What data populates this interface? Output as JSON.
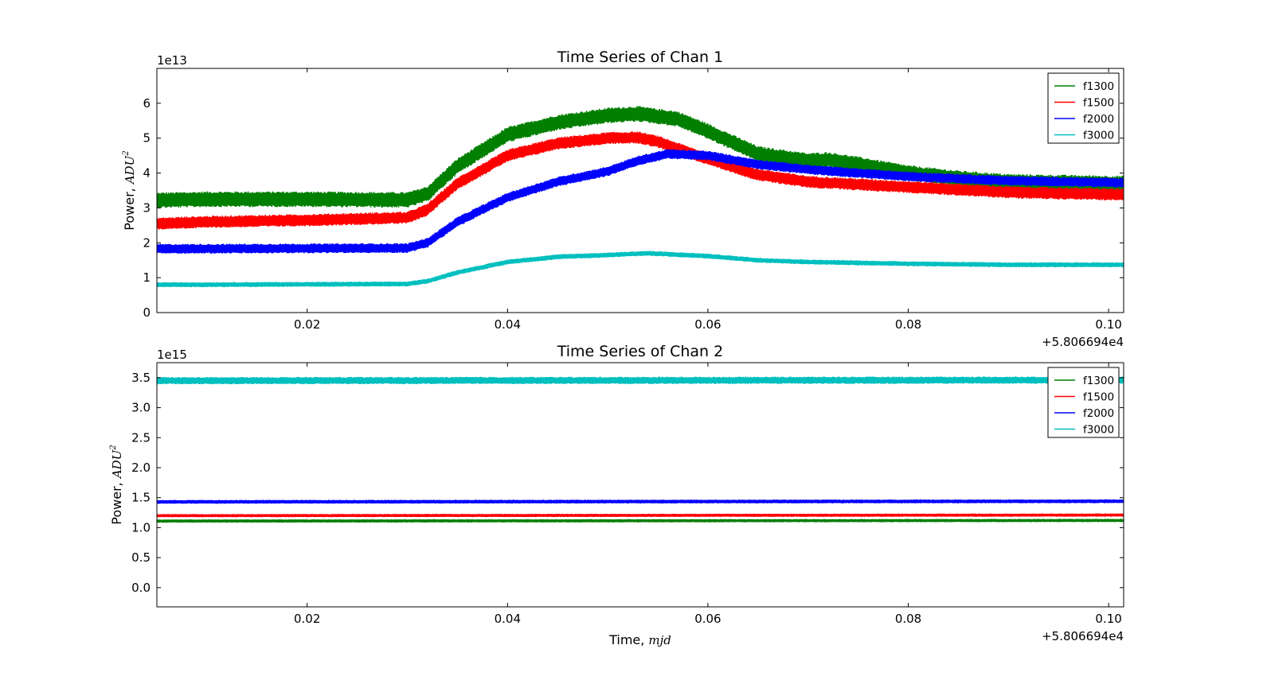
{
  "chart_data": [
    {
      "type": "line",
      "title": "Time Series of Chan 1",
      "xlabel": "",
      "ylabel": "Power,",
      "ylabel_math": "ADU",
      "ylabel_sup": "2",
      "y_multiplier": "1e13",
      "x_offset": "+5.806694e4",
      "xlim": [
        0.005,
        0.1015
      ],
      "ylim": [
        0,
        7
      ],
      "xticks": [
        0.02,
        0.04,
        0.06,
        0.08,
        0.1
      ],
      "xtick_labels": [
        "0.02",
        "0.04",
        "0.06",
        "0.08",
        "0.10"
      ],
      "yticks": [
        0,
        1,
        2,
        3,
        4,
        5,
        6
      ],
      "ytick_labels": [
        "0",
        "1",
        "2",
        "3",
        "4",
        "5",
        "6"
      ],
      "grid": false,
      "legend": "top-right",
      "series": [
        {
          "name": "f1300",
          "color": "#007f00",
          "band": 0.45,
          "x": [
            0.005,
            0.01,
            0.02,
            0.03,
            0.032,
            0.035,
            0.04,
            0.045,
            0.05,
            0.053,
            0.057,
            0.06,
            0.065,
            0.07,
            0.072,
            0.075,
            0.08,
            0.085,
            0.09,
            0.1015
          ],
          "y": [
            3.22,
            3.25,
            3.25,
            3.23,
            3.4,
            4.2,
            5.1,
            5.45,
            5.65,
            5.7,
            5.55,
            5.2,
            4.55,
            4.35,
            4.38,
            4.25,
            4.0,
            3.85,
            3.75,
            3.7
          ]
        },
        {
          "name": "f1500",
          "color": "#ff0000",
          "band": 0.35,
          "x": [
            0.005,
            0.01,
            0.02,
            0.03,
            0.032,
            0.035,
            0.04,
            0.045,
            0.05,
            0.053,
            0.055,
            0.06,
            0.065,
            0.07,
            0.08,
            0.09,
            0.1015
          ],
          "y": [
            2.55,
            2.6,
            2.65,
            2.72,
            2.95,
            3.7,
            4.5,
            4.85,
            5.0,
            5.02,
            4.9,
            4.4,
            3.95,
            3.75,
            3.6,
            3.45,
            3.38
          ]
        },
        {
          "name": "f2000",
          "color": "#0000ff",
          "band": 0.28,
          "x": [
            0.005,
            0.01,
            0.02,
            0.03,
            0.032,
            0.035,
            0.04,
            0.045,
            0.05,
            0.053,
            0.056,
            0.06,
            0.065,
            0.07,
            0.08,
            0.09,
            0.1015
          ],
          "y": [
            1.83,
            1.83,
            1.84,
            1.85,
            2.0,
            2.6,
            3.3,
            3.75,
            4.05,
            4.35,
            4.55,
            4.5,
            4.25,
            4.1,
            3.9,
            3.78,
            3.72
          ]
        },
        {
          "name": "f3000",
          "color": "#00bfbf",
          "band": 0.14,
          "x": [
            0.005,
            0.01,
            0.02,
            0.03,
            0.032,
            0.035,
            0.04,
            0.045,
            0.05,
            0.054,
            0.06,
            0.065,
            0.07,
            0.08,
            0.09,
            0.1015
          ],
          "y": [
            0.8,
            0.8,
            0.81,
            0.82,
            0.9,
            1.15,
            1.45,
            1.6,
            1.65,
            1.7,
            1.62,
            1.5,
            1.45,
            1.4,
            1.37,
            1.37
          ]
        }
      ]
    },
    {
      "type": "line",
      "title": "Time Series of Chan 2",
      "xlabel": "Time,",
      "xlabel_math": "mjd",
      "ylabel": "Power,",
      "ylabel_math": "ADU",
      "ylabel_sup": "2",
      "y_multiplier": "1e15",
      "x_offset": "+5.806694e4",
      "xlim": [
        0.005,
        0.1015
      ],
      "ylim": [
        -0.32,
        3.75
      ],
      "xticks": [
        0.02,
        0.04,
        0.06,
        0.08,
        0.1
      ],
      "xtick_labels": [
        "0.02",
        "0.04",
        "0.06",
        "0.08",
        "0.10"
      ],
      "yticks": [
        0.0,
        0.5,
        1.0,
        1.5,
        2.0,
        2.5,
        3.0,
        3.5
      ],
      "ytick_labels": [
        "0.0",
        "0.5",
        "1.0",
        "1.5",
        "2.0",
        "2.5",
        "3.0",
        "3.5"
      ],
      "grid": false,
      "legend": "top-right",
      "series": [
        {
          "name": "f1300",
          "color": "#007f00",
          "band": 0.05,
          "x": [
            0.005,
            0.1015
          ],
          "y": [
            1.11,
            1.12
          ]
        },
        {
          "name": "f1500",
          "color": "#ff0000",
          "band": 0.05,
          "x": [
            0.005,
            0.1015
          ],
          "y": [
            1.2,
            1.21
          ]
        },
        {
          "name": "f2000",
          "color": "#0000ff",
          "band": 0.06,
          "x": [
            0.005,
            0.1015
          ],
          "y": [
            1.43,
            1.44
          ]
        },
        {
          "name": "f3000",
          "color": "#00bfbf",
          "band": 0.12,
          "x": [
            0.005,
            0.1015
          ],
          "y": [
            3.45,
            3.46
          ]
        }
      ]
    }
  ]
}
